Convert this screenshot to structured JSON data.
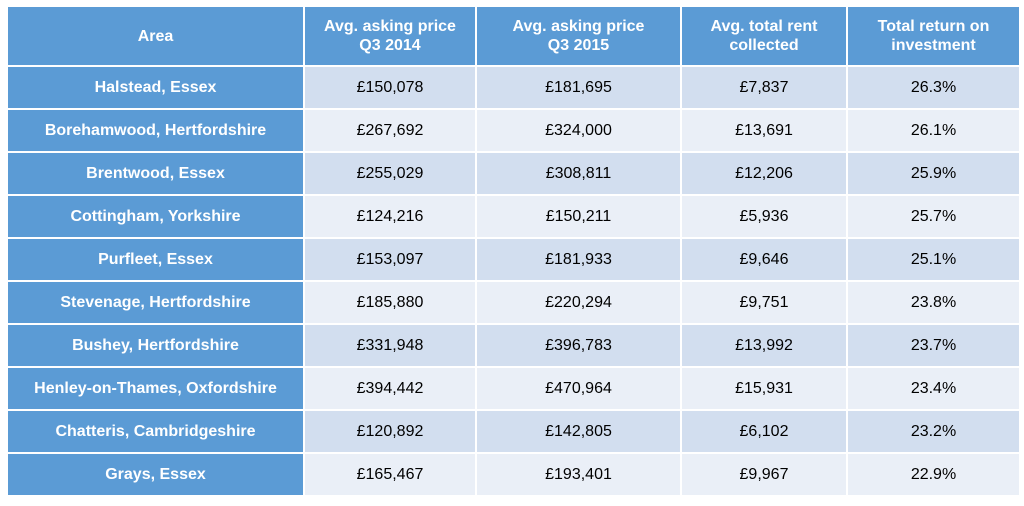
{
  "colors": {
    "header_bg": "#5b9bd5",
    "area_bg": "#5b9bd5",
    "row_odd": "#d2deef",
    "row_even": "#eaeff7"
  },
  "table": {
    "headers": {
      "area": "Area",
      "price_2014_line1": "Avg. asking price",
      "price_2014_line2": "Q3 2014",
      "price_2015_line1": "Avg. asking price",
      "price_2015_line2": "Q3 2015",
      "rent_line1": "Avg. total rent",
      "rent_line2": "collected",
      "roi_line1": "Total return on",
      "roi_line2": "investment"
    },
    "rows": [
      {
        "area": "Halstead, Essex",
        "price_2014": "£150,078",
        "price_2015": "£181,695",
        "rent": "£7,837",
        "roi": "26.3%"
      },
      {
        "area": "Borehamwood, Hertfordshire",
        "price_2014": "£267,692",
        "price_2015": "£324,000",
        "rent": "£13,691",
        "roi": "26.1%"
      },
      {
        "area": "Brentwood, Essex",
        "price_2014": "£255,029",
        "price_2015": "£308,811",
        "rent": "£12,206",
        "roi": "25.9%"
      },
      {
        "area": "Cottingham, Yorkshire",
        "price_2014": "£124,216",
        "price_2015": "£150,211",
        "rent": "£5,936",
        "roi": "25.7%"
      },
      {
        "area": "Purfleet, Essex",
        "price_2014": "£153,097",
        "price_2015": "£181,933",
        "rent": "£9,646",
        "roi": "25.1%"
      },
      {
        "area": "Stevenage, Hertfordshire",
        "price_2014": "£185,880",
        "price_2015": "£220,294",
        "rent": "£9,751",
        "roi": "23.8%"
      },
      {
        "area": "Bushey, Hertfordshire",
        "price_2014": "£331,948",
        "price_2015": "£396,783",
        "rent": "£13,992",
        "roi": "23.7%"
      },
      {
        "area": "Henley-on-Thames, Oxfordshire",
        "price_2014": "£394,442",
        "price_2015": "£470,964",
        "rent": "£15,931",
        "roi": "23.4%"
      },
      {
        "area": "Chatteris, Cambridgeshire",
        "price_2014": "£120,892",
        "price_2015": "£142,805",
        "rent": "£6,102",
        "roi": "23.2%"
      },
      {
        "area": "Grays, Essex",
        "price_2014": "£165,467",
        "price_2015": "£193,401",
        "rent": "£9,967",
        "roi": "22.9%"
      }
    ]
  }
}
